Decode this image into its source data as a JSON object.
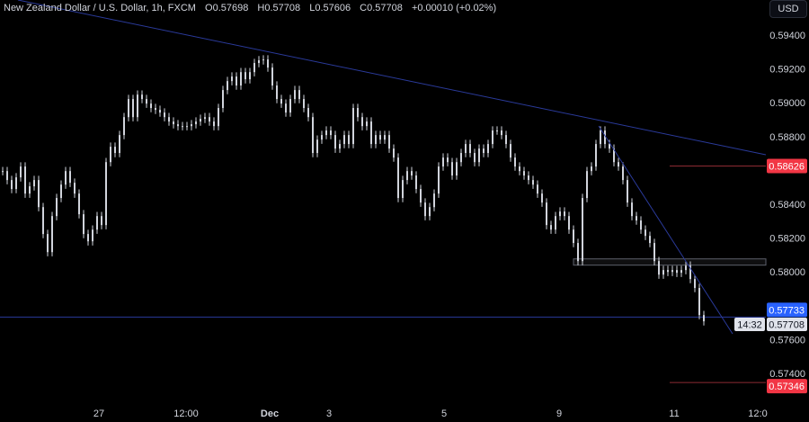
{
  "header": {
    "symbol_title": "New Zealand Dollar / U.S. Dollar, 1h, FXCM",
    "open": "O0.57698",
    "high": "H0.57708",
    "low": "L0.57606",
    "close": "C0.57708",
    "change": "+0.00010 (+0.02%)"
  },
  "currency_button": "USD",
  "chart_data": {
    "type": "candlestick",
    "title": "New Zealand Dollar / U.S. Dollar, 1h, FXCM",
    "ylim": [
      0.5721,
      0.5962
    ],
    "y_ticks": [
      "0.59400",
      "0.59200",
      "0.59000",
      "0.58800",
      "0.58400",
      "0.58200",
      "0.58000",
      "0.57600",
      "0.57400"
    ],
    "x_ticks": [
      "27",
      "12:00",
      "Dec",
      "3",
      "5",
      "9",
      "11",
      "12:0"
    ],
    "grid": false,
    "candle_color": "#d1d4dc",
    "closes": [
      0.58596,
      0.58543,
      0.5849,
      0.58559,
      0.58623,
      0.58463,
      0.58506,
      0.58543,
      0.58383,
      0.58224,
      0.58117,
      0.5833,
      0.58437,
      0.58516,
      0.58596,
      0.58527,
      0.58463,
      0.58341,
      0.58224,
      0.58181,
      0.5825,
      0.5833,
      0.58277,
      0.58649,
      0.5874,
      0.58703,
      0.58809,
      0.58915,
      0.59022,
      0.58915,
      0.59048,
      0.59022,
      0.58995,
      0.58969,
      0.58958,
      0.58942,
      0.58915,
      0.58889,
      0.58873,
      0.58862,
      0.58862,
      0.58862,
      0.58873,
      0.58889,
      0.58905,
      0.58915,
      0.58889,
      0.58862,
      0.58969,
      0.59075,
      0.59128,
      0.59155,
      0.59102,
      0.59181,
      0.59139,
      0.59181,
      0.59235,
      0.59251,
      0.59256,
      0.59208,
      0.59102,
      0.59022,
      0.58995,
      0.58942,
      0.59022,
      0.59075,
      0.59022,
      0.58969,
      0.58915,
      0.58703,
      0.58782,
      0.58809,
      0.58836,
      0.58809,
      0.58729,
      0.58756,
      0.58809,
      0.58756,
      0.58969,
      0.58915,
      0.58862,
      0.58889,
      0.58756,
      0.58809,
      0.58782,
      0.58809,
      0.58729,
      0.58676,
      0.58437,
      0.58543,
      0.58596,
      0.5857,
      0.5849,
      0.5841,
      0.5833,
      0.58383,
      0.58463,
      0.58623,
      0.58676,
      0.58649,
      0.5857,
      0.58649,
      0.58703,
      0.58756,
      0.58703,
      0.58649,
      0.58729,
      0.58703,
      0.58756,
      0.58836,
      0.58836,
      0.58809,
      0.58756,
      0.58676,
      0.58623,
      0.58596,
      0.5857,
      0.58543,
      0.58516,
      0.58463,
      0.5841,
      0.58277,
      0.5825,
      0.5833,
      0.58357,
      0.5833,
      0.5825,
      0.58171,
      0.58064,
      0.58437,
      0.58596,
      0.58623,
      0.58756,
      0.58836,
      0.58756,
      0.58729,
      0.58649,
      0.58623,
      0.58543,
      0.5841,
      0.5833,
      0.58304,
      0.5825,
      0.58213,
      0.58171,
      0.58064,
      0.57984,
      0.58011,
      0.58,
      0.58011,
      0.57995,
      0.58011,
      0.58037,
      0.57958,
      0.57905,
      0.57745,
      0.57708
    ],
    "horizontal_levels": [
      {
        "price": 0.58626,
        "label": "0.58626",
        "color": "#f23645"
      },
      {
        "price": 0.57346,
        "label": "0.57346",
        "color": "#f23645"
      },
      {
        "price": 0.57733,
        "label": "0.57733",
        "color": "#2962ff"
      }
    ],
    "zone": {
      "top": 0.58077,
      "bottom": 0.5804,
      "color": "#787b86"
    },
    "trendline_color": "#2a3a9a",
    "last_price": {
      "value": "0.57708",
      "countdown": "14:32"
    }
  }
}
